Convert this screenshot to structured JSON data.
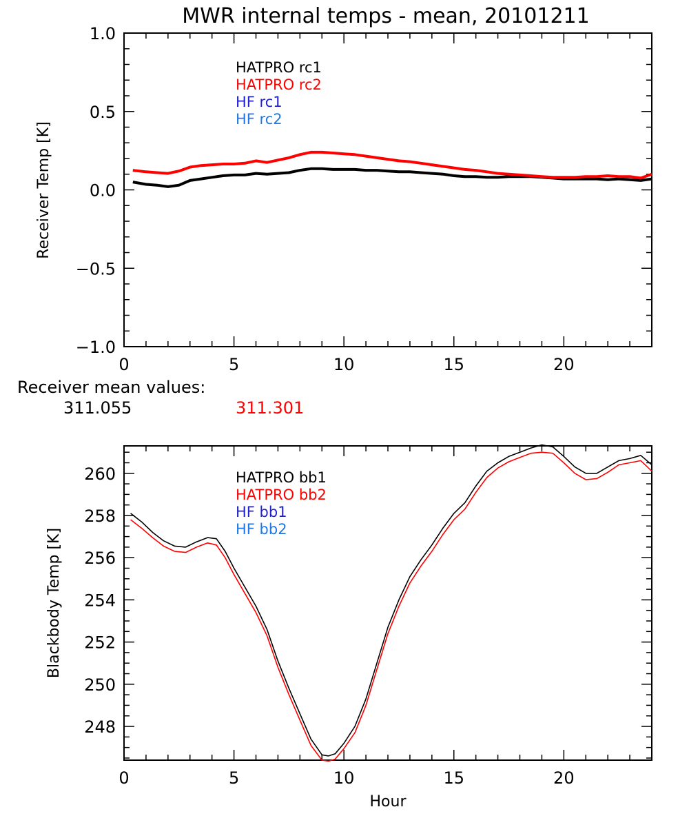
{
  "chart_data": [
    {
      "type": "line",
      "title": "MWR internal temps - mean, 20101211",
      "xlabel": "",
      "ylabel": "Receiver Temp [K]",
      "xlim": [
        0,
        24
      ],
      "ylim": [
        -1.0,
        1.0
      ],
      "xticks": [
        "0",
        "5",
        "10",
        "15",
        "20"
      ],
      "xtick_values": [
        0,
        5,
        10,
        15,
        20
      ],
      "yticks": [
        "-1.0",
        "-0.5",
        "0.0",
        "0.5",
        "1.0"
      ],
      "ytick_values": [
        -1.0,
        -0.5,
        0.0,
        0.5,
        1.0
      ],
      "grid": false,
      "legend_placement": "top-left",
      "legend": [
        {
          "label": "HATPRO rc1",
          "color": "#000000"
        },
        {
          "label": "HATPRO rc2",
          "color": "#ff0000"
        },
        {
          "label": "HF rc1",
          "color": "#2020d0"
        },
        {
          "label": "HF rc2",
          "color": "#1e78e6"
        }
      ],
      "x": [
        0.4,
        1.0,
        1.5,
        2.0,
        2.5,
        3.0,
        3.5,
        4.0,
        4.5,
        5.0,
        5.5,
        6.0,
        6.5,
        7.0,
        7.5,
        8.0,
        8.5,
        9.0,
        9.5,
        10.0,
        10.5,
        11.0,
        11.5,
        12.0,
        12.5,
        13.0,
        13.5,
        14.0,
        14.5,
        15.0,
        15.5,
        16.0,
        16.5,
        17.0,
        17.5,
        18.0,
        18.5,
        19.0,
        19.5,
        20.0,
        20.5,
        21.0,
        21.5,
        22.0,
        22.5,
        23.0,
        23.5,
        24.0
      ],
      "series": [
        {
          "name": "HATPRO rc1",
          "color": "#000000",
          "values": [
            0.05,
            0.035,
            0.03,
            0.02,
            0.03,
            0.06,
            0.07,
            0.08,
            0.09,
            0.095,
            0.095,
            0.105,
            0.1,
            0.105,
            0.11,
            0.125,
            0.135,
            0.135,
            0.13,
            0.13,
            0.13,
            0.125,
            0.125,
            0.12,
            0.115,
            0.115,
            0.11,
            0.105,
            0.1,
            0.09,
            0.085,
            0.085,
            0.08,
            0.08,
            0.085,
            0.085,
            0.085,
            0.08,
            0.075,
            0.07,
            0.07,
            0.07,
            0.07,
            0.065,
            0.07,
            0.065,
            0.06,
            0.07
          ]
        },
        {
          "name": "HATPRO rc2",
          "color": "#ff0000",
          "values": [
            0.125,
            0.115,
            0.11,
            0.105,
            0.12,
            0.145,
            0.155,
            0.16,
            0.165,
            0.165,
            0.17,
            0.185,
            0.175,
            0.19,
            0.205,
            0.225,
            0.24,
            0.24,
            0.235,
            0.23,
            0.225,
            0.215,
            0.205,
            0.195,
            0.185,
            0.18,
            0.17,
            0.16,
            0.15,
            0.14,
            0.13,
            0.125,
            0.115,
            0.105,
            0.1,
            0.095,
            0.09,
            0.085,
            0.08,
            0.08,
            0.08,
            0.085,
            0.085,
            0.09,
            0.085,
            0.085,
            0.075,
            0.1
          ]
        }
      ]
    },
    {
      "type": "line",
      "title": "",
      "xlabel": "Hour",
      "ylabel": "Blackbody Temp [K]",
      "xlim": [
        0,
        24
      ],
      "ylim": [
        246.4,
        261.3
      ],
      "xticks": [
        "0",
        "5",
        "10",
        "15",
        "20"
      ],
      "xtick_values": [
        0,
        5,
        10,
        15,
        20
      ],
      "yticks": [
        "248",
        "250",
        "252",
        "254",
        "256",
        "258",
        "260"
      ],
      "ytick_values": [
        248,
        250,
        252,
        254,
        256,
        258,
        260
      ],
      "grid": false,
      "legend_placement": "top-left",
      "legend": [
        {
          "label": "HATPRO bb1",
          "color": "#000000"
        },
        {
          "label": "HATPRO bb2",
          "color": "#ff0000"
        },
        {
          "label": "HF bb1",
          "color": "#2020d0"
        },
        {
          "label": "HF bb2",
          "color": "#1e78e6"
        }
      ],
      "x": [
        0.3,
        0.8,
        1.3,
        1.8,
        2.3,
        2.8,
        3.3,
        3.8,
        4.2,
        4.6,
        5.0,
        5.5,
        6.0,
        6.5,
        7.0,
        7.5,
        8.0,
        8.5,
        9.0,
        9.3,
        9.6,
        10.0,
        10.5,
        11.0,
        11.5,
        12.0,
        12.5,
        13.0,
        13.5,
        14.0,
        14.5,
        15.0,
        15.5,
        16.0,
        16.5,
        17.0,
        17.5,
        18.0,
        18.5,
        19.0,
        19.5,
        20.0,
        20.5,
        21.0,
        21.5,
        22.0,
        22.5,
        23.0,
        23.5,
        24.0
      ],
      "series": [
        {
          "name": "HATPRO bb1",
          "color": "#000000",
          "values": [
            258.1,
            257.7,
            257.2,
            256.8,
            256.55,
            256.5,
            256.75,
            256.95,
            256.9,
            256.3,
            255.5,
            254.6,
            253.7,
            252.6,
            251.1,
            249.8,
            248.6,
            247.4,
            246.65,
            246.6,
            246.7,
            247.2,
            248.0,
            249.3,
            251.0,
            252.7,
            254.0,
            255.1,
            255.9,
            256.6,
            257.4,
            258.1,
            258.6,
            259.4,
            260.1,
            260.5,
            260.8,
            261.0,
            261.2,
            261.35,
            261.25,
            260.8,
            260.3,
            260.0,
            260.0,
            260.3,
            260.6,
            260.7,
            260.85,
            260.4
          ]
        },
        {
          "name": "HATPRO bb2",
          "color": "#ff0000",
          "values": [
            257.8,
            257.4,
            256.95,
            256.55,
            256.3,
            256.25,
            256.5,
            256.7,
            256.6,
            256.0,
            255.2,
            254.3,
            253.4,
            252.3,
            250.8,
            249.5,
            248.3,
            247.1,
            246.4,
            246.35,
            246.45,
            246.95,
            247.7,
            249.0,
            250.7,
            252.4,
            253.7,
            254.8,
            255.6,
            256.3,
            257.1,
            257.8,
            258.3,
            259.1,
            259.8,
            260.25,
            260.55,
            260.75,
            260.95,
            261.0,
            260.95,
            260.5,
            260.0,
            259.7,
            259.75,
            260.05,
            260.4,
            260.5,
            260.6,
            260.1
          ]
        }
      ]
    }
  ],
  "receiver_means": {
    "label": "Receiver mean values:",
    "values": [
      {
        "text": "311.055",
        "color": "#000000"
      },
      {
        "text": "311.301",
        "color": "#ff0000"
      }
    ]
  }
}
